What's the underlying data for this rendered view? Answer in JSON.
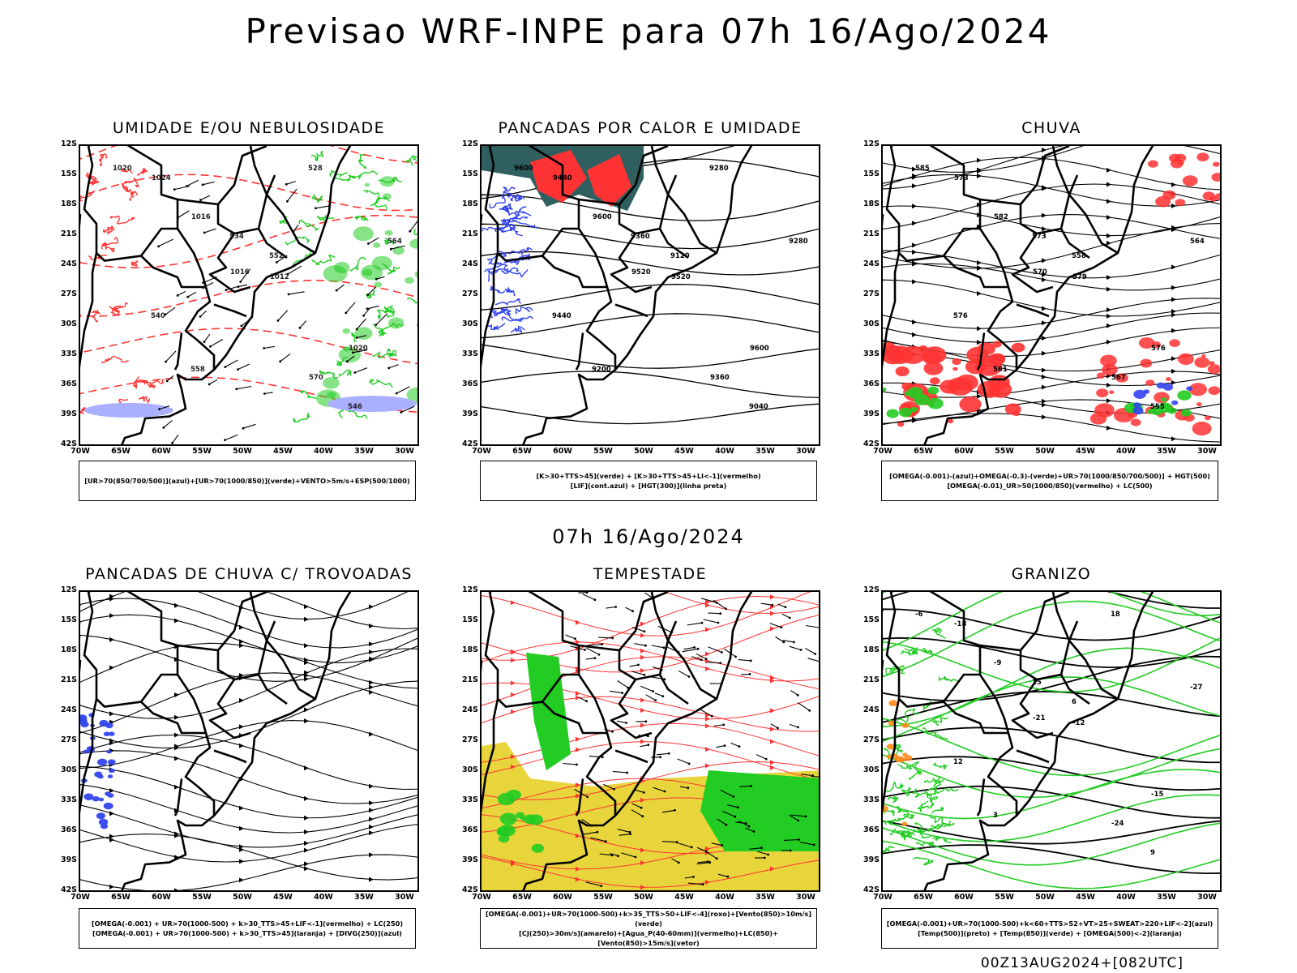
{
  "title": "Previsao WRF-INPE  para 07h 16/Ago/2024",
  "mid_title": "07h 16/Ago/2024",
  "footer": "00Z13AUG2024+[082UTC]",
  "lat_ticks": [
    "12S",
    "15S",
    "18S",
    "21S",
    "24S",
    "27S",
    "30S",
    "33S",
    "36S",
    "39S",
    "42S"
  ],
  "lon_ticks": [
    "70W",
    "65W",
    "60W",
    "55W",
    "50W",
    "45W",
    "40W",
    "35W",
    "30W"
  ],
  "colors": {
    "blue": "#3344ee",
    "green": "#22cc22",
    "red": "#ff3333",
    "violet": "#aab0ff",
    "teal": "#2f5f5f",
    "yellow": "#e8d53c",
    "orange": "#ff8c1a",
    "black": "#000000"
  },
  "panels": [
    {
      "title": "UMIDADE E/OU NEBULOSIDADE",
      "legend": [
        "[UR>70(850/700/500)](azul)+[UR>70(1000/850)](verde)+VENTO>5m/s+ESP(500/1000)"
      ],
      "labels": [
        "1020",
        "1016",
        "1012",
        "1020",
        "1024",
        "1016",
        "570",
        "564",
        "558",
        "552",
        "546",
        "540",
        "534",
        "528"
      ]
    },
    {
      "title": "PANCADAS POR CALOR E UMIDADE",
      "legend": [
        "[K>30+TTS>45](verde) + [K>30+TTS>45+LI<-1](vermelho)",
        "[LIF](cont.azul) + [HGT(300)](linha preta)"
      ],
      "labels": [
        "9600",
        "9600",
        "9520",
        "9600",
        "9440",
        "9520",
        "9360",
        "9280",
        "9200",
        "9120",
        "9040",
        "9440",
        "9360",
        "9280"
      ]
    },
    {
      "title": "CHUVA",
      "legend": [
        "[OMEGA(-0.001)-(azul)+OMEGA(-0.3)-(verde)+UR>70(1000/850/700/500)] + HGT(500)",
        "[OMEGA(-0.01)_UR>50(1000/850)(vermelho) + LC(500)"
      ],
      "labels": [
        "585",
        "582",
        "579",
        "576",
        "573",
        "570",
        "567",
        "564",
        "561",
        "558",
        "555",
        "576",
        "573"
      ]
    },
    {
      "title": "PANCADAS DE CHUVA C/ TROVOADAS",
      "legend": [
        "[OMEGA(-0.001) + UR>70(1000-500) + k>30_TTS>45+LIF<-1](vermelho) + LC(250)",
        "[OMEGA(-0.001) + UR>70(1000-500) + k>30_TTS>45](laranja) + [DIVG(250)](azul)"
      ],
      "labels": []
    },
    {
      "title": "TEMPESTADE",
      "legend": [
        "[OMEGA(-0.001)+UR>70(1000-500)+k>35_TTS>50+LIF<-4](roxo)+[Vento(850)>10m/s](verde)",
        "[CJ(250)>30m/s](amarelo)+[Agua_P(40-60mm)](vermelho)+LC(850)+[Vento(850)>15m/s](vetor)"
      ],
      "labels": []
    },
    {
      "title": "GRANIZO",
      "legend": [
        "[OMEGA(-0.001)+UR>70(1000-500)+k<60+TTS>52+VT>25+SWEAT>220+LIF<-2](azul)",
        "[Temp(500)](preto) + [Temp(850)](verde) + [OMEGA(500)<-2](laranja)"
      ],
      "labels": [
        "-6",
        "-9",
        "-12",
        "-15",
        "-18",
        "-21",
        "-24",
        "-27",
        "3",
        "6",
        "9",
        "12",
        "15",
        "18"
      ]
    }
  ]
}
